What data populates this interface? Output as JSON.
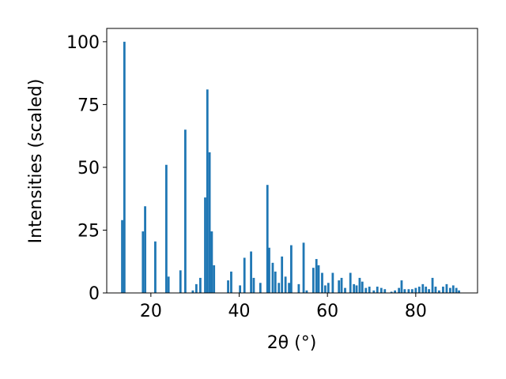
{
  "chart_data": {
    "type": "bar",
    "xlabel": "2θ (°)",
    "ylabel": "Intensities (scaled)",
    "color": "#1f77b4",
    "x": [
      13.5,
      14,
      18.2,
      18.7,
      21,
      23.5,
      24,
      26.7,
      27.8,
      29.5,
      30.3,
      31.2,
      32.3,
      32.8,
      33.3,
      33.8,
      34.3,
      37.5,
      38.2,
      40.2,
      41.2,
      42.7,
      43.3,
      44.8,
      46.4,
      46.8,
      47.6,
      48.2,
      49,
      49.7,
      50.5,
      51.3,
      51.8,
      53.5,
      54.6,
      55.3,
      56.8,
      57.5,
      58,
      58.8,
      59.5,
      60.2,
      61.2,
      62.6,
      63.2,
      64,
      65.2,
      66,
      66.6,
      67.3,
      67.9,
      68.7,
      69.5,
      70.5,
      71.3,
      72.2,
      73,
      74.5,
      75.3,
      76.2,
      76.8,
      77.5,
      78.4,
      79.2,
      80,
      80.8,
      81.6,
      82.3,
      83,
      83.8,
      84.5,
      85.3,
      86.2,
      87,
      87.8,
      88.5,
      89.2,
      89.8
    ],
    "values": [
      29,
      100,
      24.5,
      34.5,
      20.5,
      51,
      6.5,
      9,
      65,
      1,
      3.5,
      6,
      38,
      81,
      56,
      24.5,
      11,
      5,
      8.5,
      3,
      14,
      16.5,
      6,
      4,
      43,
      18,
      12,
      8.5,
      4,
      14.5,
      6.5,
      4,
      19,
      3.5,
      20,
      1,
      10,
      13.5,
      11,
      8,
      3,
      4,
      8,
      5,
      6,
      2,
      8,
      3.5,
      3,
      6,
      4.5,
      2,
      2.5,
      1,
      2.5,
      2,
      1.5,
      0.5,
      1,
      2,
      5,
      1.5,
      1.5,
      1.5,
      2,
      2.5,
      3.5,
      2.5,
      1.5,
      6,
      2.5,
      1,
      2.5,
      3.5,
      2,
      3,
      2,
      1
    ],
    "xlim": [
      10,
      94
    ],
    "xticks": [
      20,
      40,
      60,
      80
    ],
    "ylim": [
      0,
      105.3
    ],
    "yticks": [
      0,
      25,
      50,
      75,
      100
    ],
    "grid": false
  }
}
